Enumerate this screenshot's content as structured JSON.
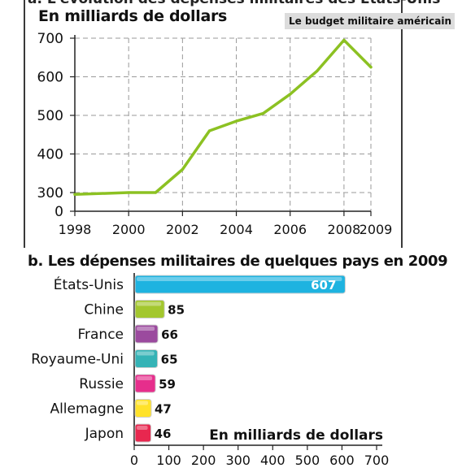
{
  "header": {
    "cut_title": "a. L'évolution des dépenses militaires des États-Unis",
    "unit_label": "En milliards de dollars",
    "badge": "Le budget militaire américain"
  },
  "chart_data": [
    {
      "type": "line",
      "title": "",
      "ylabel": "En milliards de dollars",
      "ylim": [
        0,
        700
      ],
      "y_ticks": [
        0,
        300,
        400,
        500,
        600,
        700
      ],
      "x_ticks": [
        1998,
        2000,
        2002,
        2004,
        2006,
        2008,
        2009
      ],
      "grid": true,
      "color": "#8cc122",
      "x": [
        1998,
        2000,
        2001,
        2002,
        2003,
        2004,
        2005,
        2006,
        2007,
        2008,
        2009
      ],
      "y": [
        270,
        300,
        300,
        360,
        460,
        485,
        505,
        555,
        615,
        695,
        625
      ]
    },
    {
      "type": "bar",
      "orientation": "horizontal",
      "title": "b. Les dépenses militaires de quelques pays en 2009",
      "xlabel": "En milliards de dollars",
      "xlim": [
        0,
        700
      ],
      "x_ticks": [
        0,
        100,
        200,
        300,
        400,
        500,
        600,
        700
      ],
      "grid": false,
      "categories": [
        "États-Unis",
        "Chine",
        "France",
        "Royaume-Uni",
        "Russie",
        "Allemagne",
        "Japon"
      ],
      "values": [
        607,
        85,
        66,
        65,
        59,
        47,
        46
      ],
      "colors": [
        "#1eb3e0",
        "#a3c72e",
        "#9b4a9e",
        "#35b3b6",
        "#e62e8c",
        "#ffe22a",
        "#e8274f"
      ],
      "labels": [
        "607",
        "85",
        "66",
        "65",
        "59",
        "47",
        "46"
      ]
    }
  ]
}
